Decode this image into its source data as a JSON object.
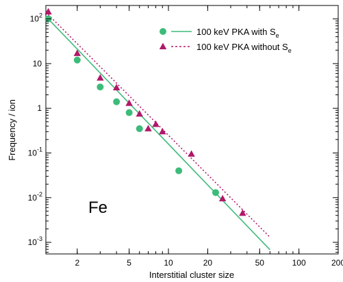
{
  "chart_data": {
    "type": "scatter",
    "xscale": "log",
    "yscale": "log",
    "xlim": [
      1.15,
      200
    ],
    "ylim": [
      0.00055,
      200
    ],
    "xlabel": "Interstitial cluster size",
    "ylabel": "Frequency / ion",
    "x_ticks": [
      {
        "value": 2,
        "label": "2"
      },
      {
        "value": 5,
        "label": "5"
      },
      {
        "value": 10,
        "label": "10"
      },
      {
        "value": 20,
        "label": "20"
      },
      {
        "value": 50,
        "label": "50"
      },
      {
        "value": 100,
        "label": "100"
      },
      {
        "value": 200,
        "label": "200"
      }
    ],
    "y_ticks": [
      {
        "value": 100,
        "base": "10",
        "exp": "2"
      },
      {
        "value": 10,
        "base": "10",
        "exp": ""
      },
      {
        "value": 1,
        "base": "1",
        "exp": ""
      },
      {
        "value": 0.1,
        "base": "10",
        "exp": "-1"
      },
      {
        "value": 0.01,
        "base": "10",
        "exp": "-2"
      },
      {
        "value": 0.001,
        "base": "10",
        "exp": "-3"
      }
    ],
    "series": [
      {
        "name_main": "100 keV PKA with S",
        "name_sub": "e",
        "marker": "circle",
        "line": "solid",
        "color": "#3dbb79",
        "points": [
          [
            1.2,
            100
          ],
          [
            2,
            12
          ],
          [
            3,
            3
          ],
          [
            4,
            1.4
          ],
          [
            5,
            0.8
          ],
          [
            6,
            0.35
          ],
          [
            12,
            0.04
          ],
          [
            23,
            0.013
          ]
        ],
        "fit": [
          [
            1.2,
            100
          ],
          [
            60,
            0.00068
          ]
        ]
      },
      {
        "name_main": "100 keV PKA without S",
        "name_sub": "e",
        "marker": "triangle",
        "line": "dotted",
        "color": "#b0186a",
        "points": [
          [
            1.2,
            145
          ],
          [
            2,
            17
          ],
          [
            3,
            4.8
          ],
          [
            4,
            2.9
          ],
          [
            5,
            1.3
          ],
          [
            6,
            0.75
          ],
          [
            7,
            0.35
          ],
          [
            8,
            0.44
          ],
          [
            9,
            0.3
          ],
          [
            15,
            0.095
          ],
          [
            26,
            0.0095
          ],
          [
            37,
            0.0045
          ]
        ],
        "fit": [
          [
            1.2,
            125
          ],
          [
            60,
            0.0013
          ]
        ]
      }
    ],
    "legend_position": "top-right",
    "annotation": "Fe",
    "grid": false
  }
}
